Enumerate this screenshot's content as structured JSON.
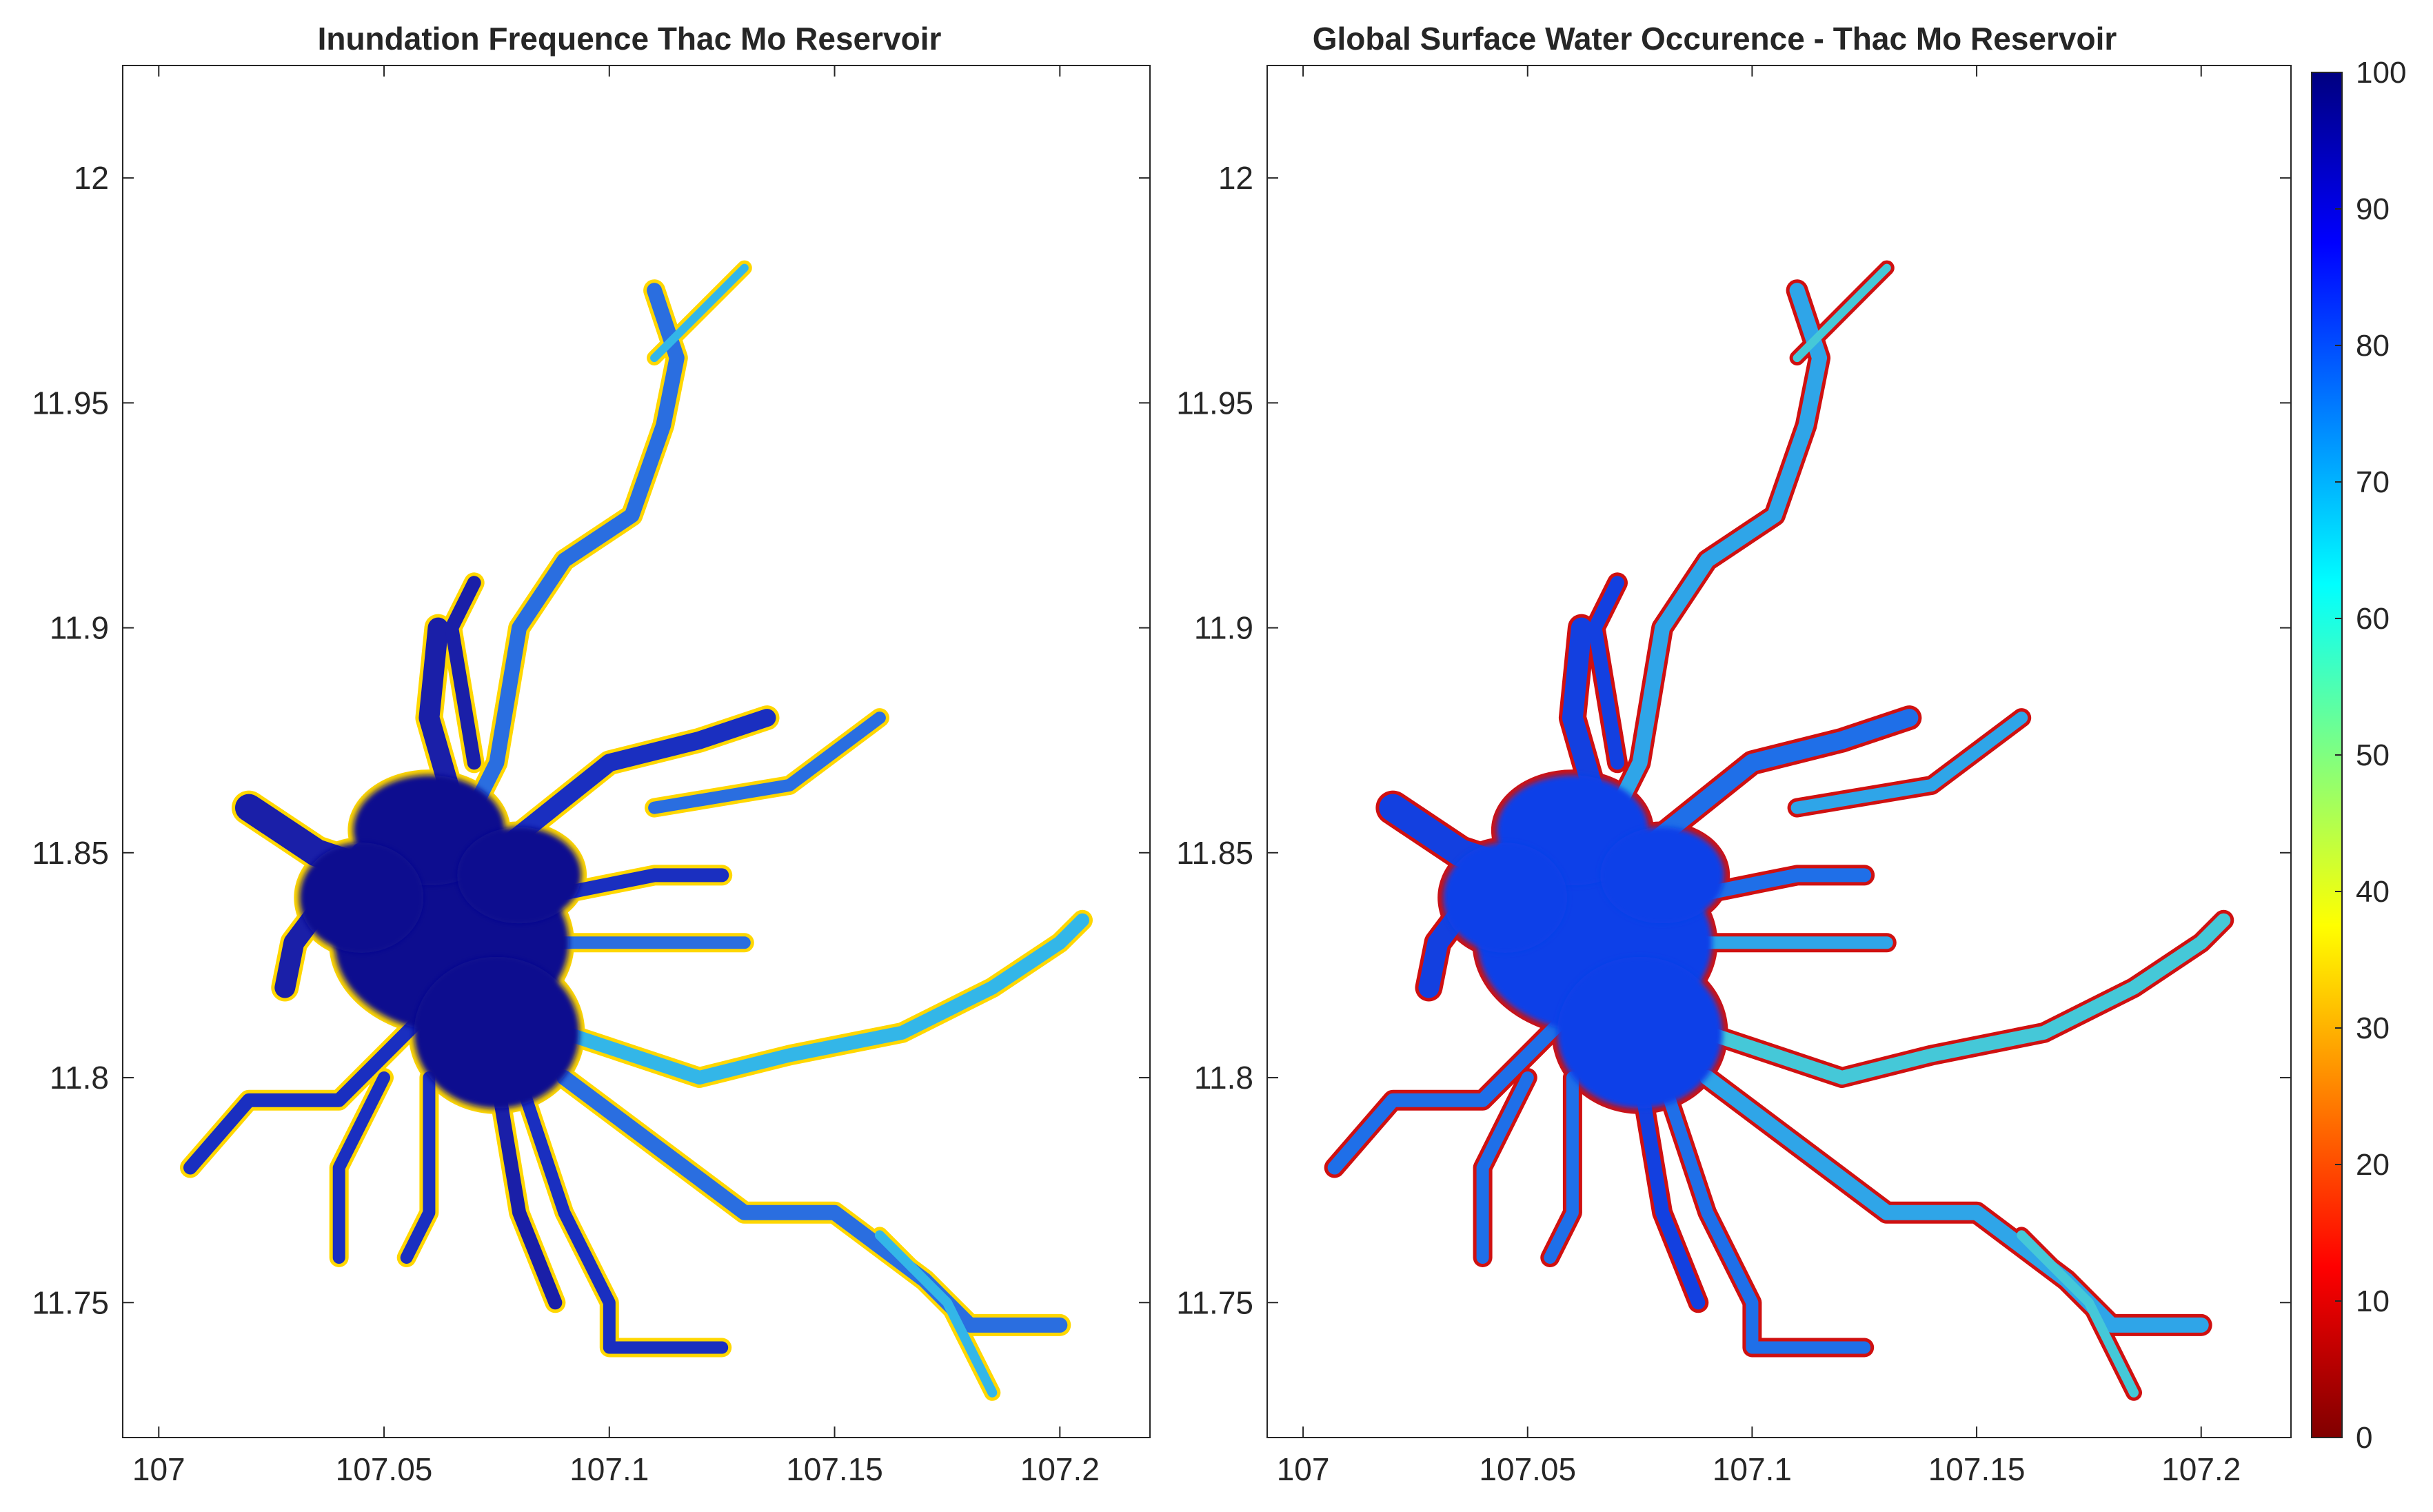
{
  "chart_data": [
    {
      "type": "heatmap",
      "title": "Inundation Frequence Thac Mo Reservoir",
      "xlim": [
        106.992,
        107.22
      ],
      "ylim": [
        11.72,
        12.025
      ],
      "x_ticks": [
        "107",
        "107.05",
        "107.1",
        "107.15",
        "107.2"
      ],
      "y_ticks": [
        "11.75",
        "11.8",
        "11.85",
        "11.9",
        "11.95",
        "12"
      ],
      "x_tick_values": [
        107,
        107.05,
        107.1,
        107.15,
        107.2
      ],
      "y_tick_values": [
        11.75,
        11.8,
        11.85,
        11.9,
        11.95,
        12
      ],
      "core_value": 97,
      "arm_colors": [
        "#1a1fa8",
        "#1a2fc0",
        "#2a6ee0",
        "#33b6e8",
        "#5fd7c8"
      ],
      "shore_color": "#ffd700"
    },
    {
      "type": "heatmap",
      "title": "Global Surface Water Occurence - Thac Mo Reservoir",
      "xlim": [
        106.992,
        107.22
      ],
      "ylim": [
        11.72,
        12.025
      ],
      "x_ticks": [
        "107",
        "107.05",
        "107.1",
        "107.15",
        "107.2"
      ],
      "y_ticks": [
        "11.75",
        "11.8",
        "11.85",
        "11.9",
        "11.95",
        "12"
      ],
      "x_tick_values": [
        107,
        107.05,
        107.1,
        107.15,
        107.2
      ],
      "y_tick_values": [
        11.75,
        11.8,
        11.85,
        11.9,
        11.95,
        12
      ],
      "core_value": 85,
      "arm_colors": [
        "#1340e0",
        "#1f6fe8",
        "#2fa5e8",
        "#45c8d8",
        "#7fe0a0"
      ],
      "shore_color": "#d01010"
    }
  ],
  "colorbar": {
    "colormap": "jet",
    "limits": [
      0,
      100
    ],
    "ticks": [
      "0",
      "10",
      "20",
      "30",
      "40",
      "50",
      "60",
      "70",
      "80",
      "90",
      "100"
    ],
    "tick_values": [
      0,
      10,
      20,
      30,
      40,
      50,
      60,
      70,
      80,
      90,
      100
    ],
    "stops": [
      "#800000",
      "#ff0000",
      "#ff8000",
      "#ffff00",
      "#80ff80",
      "#00ffff",
      "#0080ff",
      "#0000ff",
      "#000080"
    ]
  }
}
